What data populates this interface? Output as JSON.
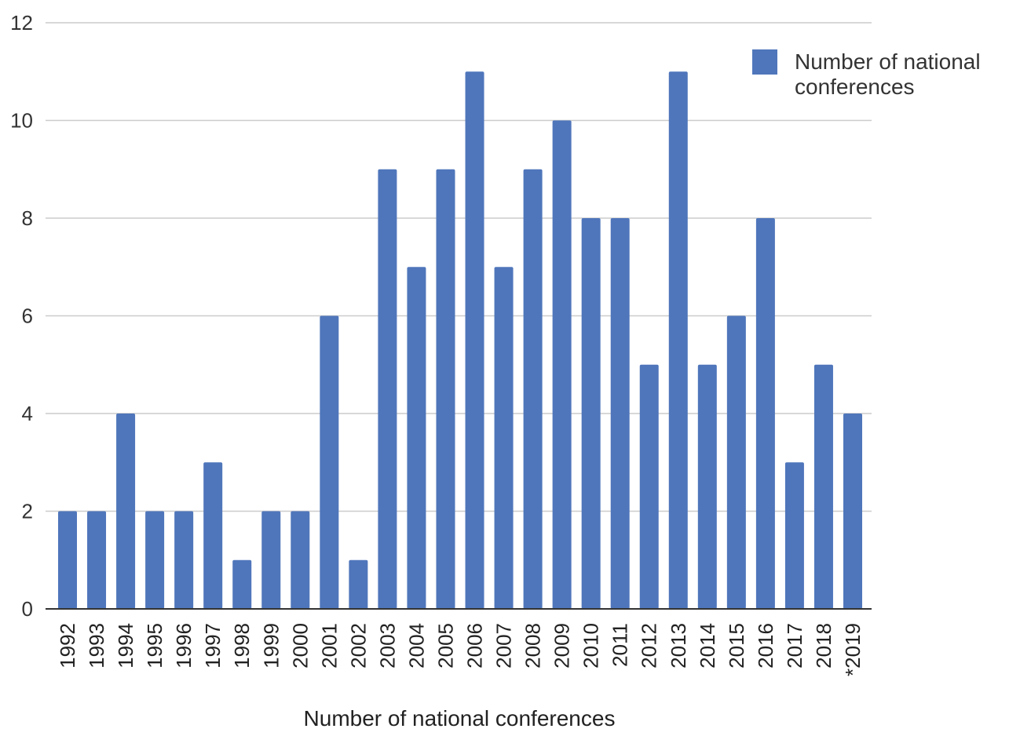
{
  "chart_data": {
    "type": "bar",
    "title": "",
    "xlabel": "Number of national conferences",
    "ylabel": "",
    "ylim": [
      0,
      12
    ],
    "yticks": [
      0,
      2,
      4,
      6,
      8,
      10,
      12
    ],
    "grid": true,
    "legend_position": "top-right",
    "categories": [
      "1992",
      "1993",
      "1994",
      "1995",
      "1996",
      "1997",
      "1998",
      "1999",
      "2000",
      "2001",
      "2002",
      "2003",
      "2004",
      "2005",
      "2006",
      "2007",
      "2008",
      "2009",
      "2010",
      "2011",
      "2012",
      "2013",
      "2014",
      "2015",
      "2016",
      "2017",
      "2018",
      "*2019"
    ],
    "series": [
      {
        "name": "Number of national conferences",
        "legend_lines": [
          "Number of national",
          "conferences"
        ],
        "color": "#4f76bb",
        "values": [
          2,
          2,
          4,
          2,
          2,
          3,
          1,
          2,
          2,
          6,
          1,
          9,
          7,
          9,
          11,
          7,
          9,
          10,
          8,
          8,
          5,
          11,
          5,
          6,
          8,
          3,
          5,
          4
        ]
      }
    ]
  }
}
